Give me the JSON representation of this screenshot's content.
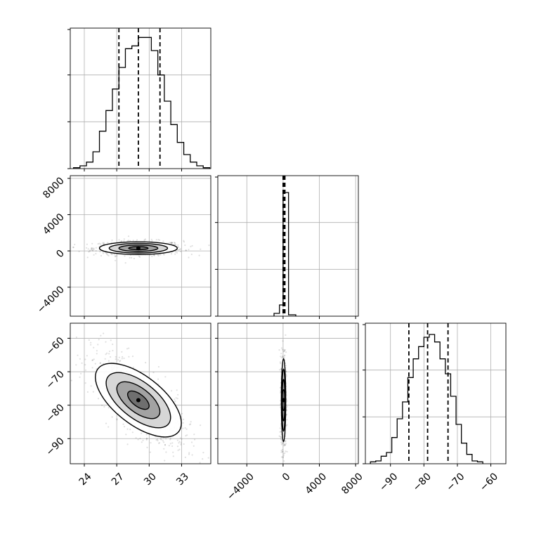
{
  "chart_data": [
    {
      "type": "histogram",
      "panel": "hist-param-0",
      "x_ticks": [
        "24",
        "27",
        "30",
        "33"
      ],
      "xlim": [
        22.7,
        35.7
      ],
      "grid": true,
      "bins_edges_start": 23.0,
      "bin_width": 0.6,
      "values": [
        1,
        3,
        7,
        18,
        40,
        62,
        85,
        108,
        128,
        131,
        140,
        140,
        126,
        100,
        72,
        47,
        28,
        15,
        7,
        3,
        1
      ],
      "ylim": [
        0,
        150
      ],
      "quantile_lines": [
        27.2,
        29.0,
        31.0
      ],
      "color": "#000000"
    },
    {
      "type": "scatter",
      "panel": "scatter-param0-vs-param1",
      "x_ticks": [
        "24",
        "27",
        "30",
        "33"
      ],
      "y_ticks": [
        "8000",
        "4000",
        "0",
        "−4000"
      ],
      "xlim": [
        22.7,
        35.7
      ],
      "ylim": [
        -7200,
        8300
      ],
      "y_tick_values": [
        8000,
        4000,
        0,
        -4000
      ],
      "grid": true,
      "center": [
        29.0,
        300
      ],
      "spread": [
        1.8,
        350
      ],
      "correlation": 0.0,
      "contour_levels_sigma": [
        0.5,
        1.0,
        1.5,
        2.0
      ]
    },
    {
      "type": "histogram",
      "panel": "hist-param-1",
      "x_ticks": [
        "−4000",
        "0",
        "4000",
        "8000"
      ],
      "xlim": [
        -7200,
        8300
      ],
      "grid": true,
      "bins": [
        {
          "from": -1000,
          "to": -400,
          "value": 2
        },
        {
          "from": -400,
          "to": 0,
          "value": 8
        },
        {
          "from": 0,
          "to": 600,
          "value": 88
        },
        {
          "from": 600,
          "to": 1400,
          "value": 1
        }
      ],
      "ylim": [
        0,
        100
      ],
      "quantile_lines": [
        0,
        80,
        200
      ],
      "color": "#000000"
    },
    {
      "type": "scatter",
      "panel": "scatter-param0-vs-param2",
      "x_ticks": [
        "24",
        "27",
        "30",
        "33"
      ],
      "y_ticks": [
        "−60",
        "−70",
        "−80",
        "−90"
      ],
      "xlim": [
        22.7,
        35.7
      ],
      "ylim": [
        -97.5,
        -55.5
      ],
      "y_tick_values": [
        -60,
        -70,
        -80,
        -90
      ],
      "grid": true,
      "center": [
        29.0,
        -78.5
      ],
      "spread": [
        1.9,
        6.2
      ],
      "correlation": -0.72,
      "contour_levels_sigma": [
        0.5,
        1.0,
        1.5,
        2.0
      ]
    },
    {
      "type": "scatter",
      "panel": "scatter-param1-vs-param2",
      "x_ticks": [
        "−4000",
        "0",
        "4000",
        "8000"
      ],
      "y_ticks": [],
      "xlim": [
        -7200,
        8300
      ],
      "ylim": [
        -97.5,
        -55.5
      ],
      "grid": true,
      "center": [
        50,
        -78.5
      ],
      "spread": [
        120,
        6.2
      ],
      "correlation": 0.0,
      "contour_levels_sigma": [
        0.5,
        1.0,
        1.5,
        2.0
      ]
    },
    {
      "type": "histogram",
      "panel": "hist-param-2",
      "x_ticks": [
        "−90",
        "−80",
        "−70",
        "−60"
      ],
      "xlim": [
        -97.5,
        -55.5
      ],
      "grid": true,
      "bins_edges_start": -96.0,
      "bin_width": 1.6,
      "values": [
        2,
        3,
        8,
        12,
        28,
        48,
        66,
        92,
        112,
        125,
        135,
        138,
        130,
        112,
        96,
        72,
        42,
        22,
        10,
        3,
        2
      ],
      "ylim": [
        0,
        150
      ],
      "quantile_lines": [
        -84.5,
        -78.9,
        -72.8
      ],
      "color": "#000000"
    }
  ]
}
